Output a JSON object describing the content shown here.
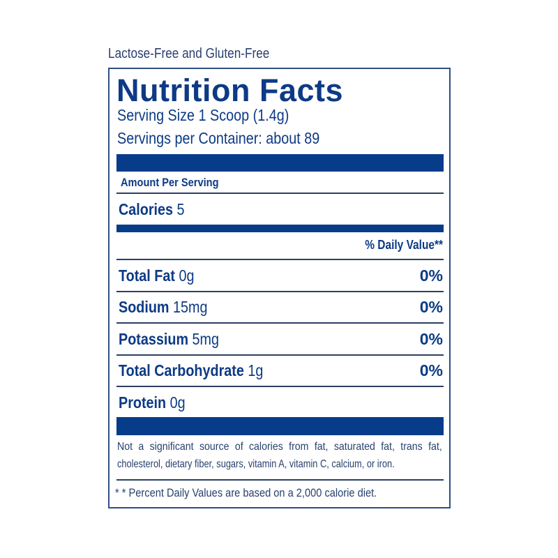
{
  "tagline": "Lactose-Free and Gluten-Free",
  "title": "Nutrition Facts",
  "serving_size": "Serving Size 1 Scoop (1.4g)",
  "servings_per_container": "Servings per Container: about 89",
  "amount_per_serving": "Amount Per Serving",
  "calories": {
    "label": "Calories",
    "value": "5"
  },
  "daily_value_header": "% Daily Value**",
  "nutrients": [
    {
      "label": "Total Fat",
      "amount": "0g",
      "dv": "0%"
    },
    {
      "label": "Sodium",
      "amount": "15mg",
      "dv": "0%"
    },
    {
      "label": "Potassium",
      "amount": "5mg",
      "dv": "0%"
    },
    {
      "label": "Total Carbohydrate",
      "amount": "1g",
      "dv": "0%"
    },
    {
      "label": "Protein",
      "amount": "0g",
      "dv": ""
    }
  ],
  "footnote_line1": "Not a significant source of calories from fat, saturated fat, trans fat,",
  "footnote_line2": "cholesterol, dietary fiber, sugars, vitamin A, vitamin C, calcium, or iron.",
  "footnote_dv": "* * Percent Daily Values are based on a 2,000 calorie diet.",
  "colors": {
    "label_blue": "#073c8a",
    "border": "#2e4f84"
  }
}
